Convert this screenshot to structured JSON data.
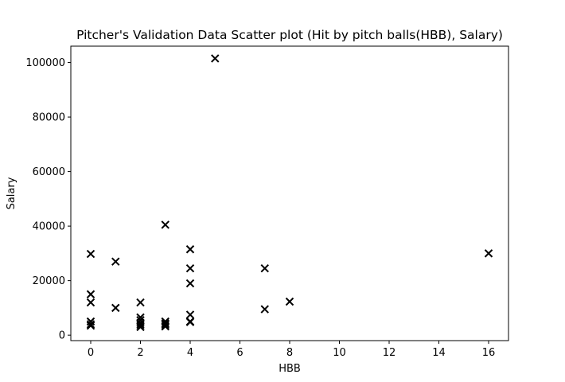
{
  "chart_data": {
    "type": "scatter",
    "title": "Pitcher's Validation Data Scatter plot (Hit by pitch balls(HBB), Salary)",
    "xlabel": "HBB",
    "ylabel": "Salary",
    "xlim": [
      -0.8,
      16.8
    ],
    "ylim": [
      -2000,
      106000
    ],
    "xticks": [
      0,
      2,
      4,
      6,
      8,
      10,
      12,
      14,
      16
    ],
    "yticks": [
      0,
      20000,
      40000,
      60000,
      80000,
      100000
    ],
    "marker": "x",
    "marker_color": "#000000",
    "grid": false,
    "legend": false,
    "x": [
      0,
      0,
      0,
      0,
      0,
      0,
      1,
      1,
      2,
      2,
      2,
      2,
      2,
      2,
      3,
      3,
      3,
      3,
      3,
      4,
      4,
      4,
      4,
      4,
      4,
      5,
      7,
      7,
      8,
      16
    ],
    "y": [
      29800,
      15000,
      12000,
      5000,
      4000,
      3500,
      27000,
      10000,
      12000,
      6500,
      5500,
      4500,
      3800,
      3000,
      40500,
      5000,
      4300,
      3800,
      3200,
      31500,
      24500,
      19000,
      7500,
      5000,
      4800,
      101500,
      24500,
      9500,
      12300,
      30000
    ]
  }
}
